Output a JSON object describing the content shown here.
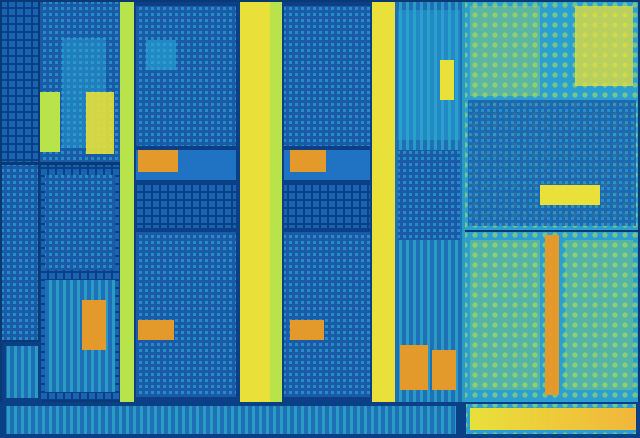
{
  "image": {
    "subject": "processor-die-shot",
    "palette": {
      "background": "#0a3a73",
      "deep_blue": "#0b3f86",
      "mid_blue": "#1f73c2",
      "cyan": "#2aa8d8",
      "teal": "#33c0c8",
      "lime": "#b9e34a",
      "yellow": "#e9e03a",
      "orange": "#e39a2a",
      "gradient_end": "#f2b63a"
    },
    "regions": [
      {
        "name": "left-io-strip"
      },
      {
        "name": "upper-left-logic"
      },
      {
        "name": "core-block-1"
      },
      {
        "name": "core-block-2"
      },
      {
        "name": "central-uncore"
      },
      {
        "name": "graphics-upper"
      },
      {
        "name": "graphics-lower"
      },
      {
        "name": "bottom-io-row"
      }
    ]
  }
}
